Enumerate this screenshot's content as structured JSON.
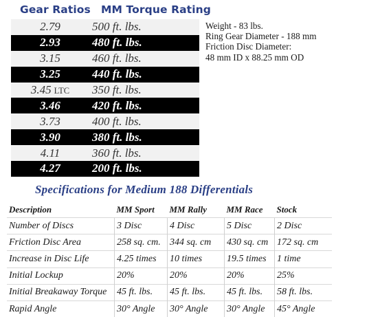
{
  "headers": {
    "gear_ratios": "Gear Ratios",
    "torque_rating": "MM Torque Rating"
  },
  "ratios": [
    {
      "ratio": "2.79",
      "torque": "500 ft. lbs.",
      "style": "light"
    },
    {
      "ratio": "2.93",
      "torque": "480 ft. lbs.",
      "style": "dark"
    },
    {
      "ratio": "3.15",
      "torque": "460 ft. lbs.",
      "style": "light"
    },
    {
      "ratio": "3.25",
      "torque": "440 ft. lbs.",
      "style": "dark"
    },
    {
      "ratio": "3.45",
      "ratio_suffix": "LTC",
      "torque": "350 ft. lbs.",
      "style": "light"
    },
    {
      "ratio": "3.46",
      "torque": "420 ft. lbs.",
      "style": "dark"
    },
    {
      "ratio": "3.73",
      "torque": "400 ft. lbs.",
      "style": "light"
    },
    {
      "ratio": "3.90",
      "torque": "380 ft. lbs.",
      "style": "dark"
    },
    {
      "ratio": "4.11",
      "torque": "360 ft. lbs.",
      "style": "light"
    },
    {
      "ratio": "4.27",
      "torque": "200 ft. lbs.",
      "style": "dark"
    }
  ],
  "specs": [
    "Weight - 83 lbs.",
    "Ring Gear Diameter - 188 mm",
    "Friction Disc Diameter:",
    "48 mm ID x 88.25 mm OD"
  ],
  "subtitle": "Specifications for Medium 188 Differentials",
  "spec_table": {
    "columns": [
      "Description",
      "MM Sport",
      "MM Rally",
      "MM Race",
      "Stock"
    ],
    "rows": [
      [
        "Number of Discs",
        "3 Disc",
        "4 Disc",
        "5 Disc",
        "2 Disc"
      ],
      [
        "Friction Disc Area",
        "258 sq. cm.",
        "344 sq. cm",
        "430 sq. cm",
        "172 sq. cm"
      ],
      [
        "Increase in Disc Life",
        "4.25 times",
        "10 times",
        "19.5 times",
        "1 time"
      ],
      [
        "Initial Lockup",
        "20%",
        "20%",
        "20%",
        "25%"
      ],
      [
        "Initial Breakaway Torque",
        "45 ft. lbs.",
        "45 ft. lbs.",
        "45 ft. lbs.",
        "58 ft. lbs."
      ],
      [
        "Rapid Angle",
        "30° Angle",
        "30° Angle",
        "30° Angle",
        "45° Angle"
      ]
    ]
  }
}
